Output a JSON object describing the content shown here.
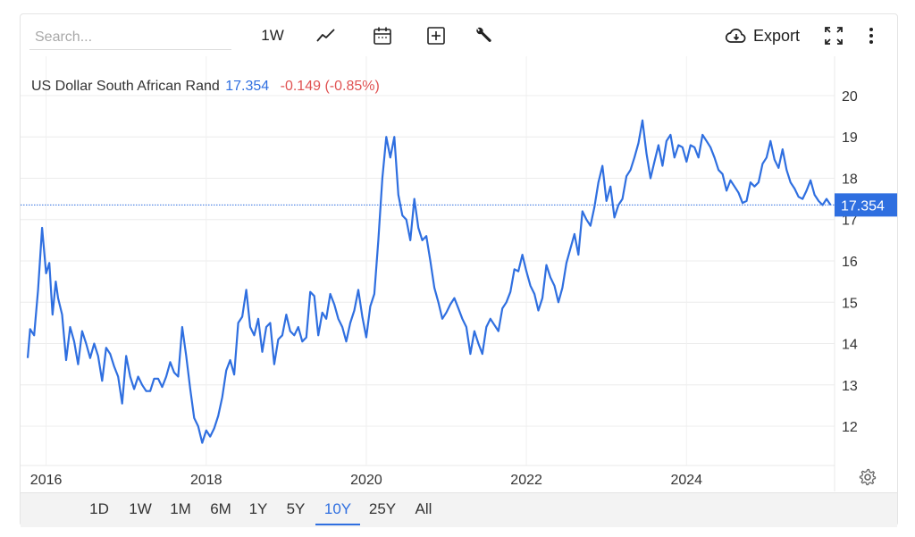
{
  "toolbar": {
    "search_placeholder": "Search...",
    "interval_label": "1W",
    "export_label": "Export",
    "icons": [
      "line-chart-icon",
      "calendar-icon",
      "add-indicator-icon",
      "wrench-icon",
      "cloud-download-icon",
      "fullscreen-icon",
      "more-vertical-icon"
    ]
  },
  "legend": {
    "name": "US Dollar South African Rand",
    "price": "17.354",
    "change": "-0.149 (-0.85%)"
  },
  "price_tag": "17.354",
  "range_buttons": [
    "1D",
    "1W",
    "1M",
    "6M",
    "1Y",
    "5Y",
    "10Y",
    "25Y",
    "All"
  ],
  "active_range": "10Y",
  "colors": {
    "line": "#2f6fe0",
    "negative": "#e05252",
    "tag_bg": "#2f6fe0"
  },
  "chart_data": {
    "type": "line",
    "title": "US Dollar South African Rand",
    "xlabel": "",
    "ylabel": "",
    "x_ticks": [
      "2016",
      "2018",
      "2020",
      "2022",
      "2024"
    ],
    "y_ticks": [
      12,
      13,
      14,
      15,
      16,
      17,
      18,
      19,
      20
    ],
    "xlim": [
      2015.77,
      2025.85
    ],
    "ylim": [
      11.05,
      20.95
    ],
    "current_value": 17.354,
    "series": [
      {
        "name": "",
        "x": [
          2015.77,
          2015.8,
          2015.85,
          2015.9,
          2015.95,
          2016.0,
          2016.04,
          2016.08,
          2016.12,
          2016.15,
          2016.2,
          2016.25,
          2016.3,
          2016.35,
          2016.4,
          2016.45,
          2016.5,
          2016.55,
          2016.6,
          2016.65,
          2016.7,
          2016.75,
          2016.8,
          2016.85,
          2016.9,
          2016.95,
          2017.0,
          2017.05,
          2017.1,
          2017.15,
          2017.2,
          2017.25,
          2017.3,
          2017.35,
          2017.4,
          2017.45,
          2017.5,
          2017.55,
          2017.6,
          2017.65,
          2017.7,
          2017.75,
          2017.8,
          2017.85,
          2017.9,
          2017.95,
          2018.0,
          2018.05,
          2018.1,
          2018.15,
          2018.2,
          2018.25,
          2018.3,
          2018.35,
          2018.4,
          2018.45,
          2018.5,
          2018.55,
          2018.6,
          2018.65,
          2018.7,
          2018.75,
          2018.8,
          2018.85,
          2018.9,
          2018.95,
          2019.0,
          2019.05,
          2019.1,
          2019.15,
          2019.2,
          2019.25,
          2019.3,
          2019.35,
          2019.4,
          2019.45,
          2019.5,
          2019.55,
          2019.6,
          2019.65,
          2019.7,
          2019.75,
          2019.8,
          2019.85,
          2019.9,
          2019.95,
          2020.0,
          2020.05,
          2020.1,
          2020.15,
          2020.2,
          2020.25,
          2020.3,
          2020.35,
          2020.4,
          2020.45,
          2020.5,
          2020.55,
          2020.6,
          2020.65,
          2020.7,
          2020.75,
          2020.8,
          2020.85,
          2020.9,
          2020.95,
          2021.0,
          2021.05,
          2021.1,
          2021.15,
          2021.2,
          2021.25,
          2021.3,
          2021.35,
          2021.4,
          2021.45,
          2021.5,
          2021.55,
          2021.6,
          2021.65,
          2021.7,
          2021.75,
          2021.8,
          2021.85,
          2021.9,
          2021.95,
          2022.0,
          2022.05,
          2022.1,
          2022.15,
          2022.2,
          2022.25,
          2022.3,
          2022.35,
          2022.4,
          2022.45,
          2022.5,
          2022.55,
          2022.6,
          2022.65,
          2022.7,
          2022.75,
          2022.8,
          2022.85,
          2022.9,
          2022.95,
          2023.0,
          2023.05,
          2023.1,
          2023.15,
          2023.2,
          2023.25,
          2023.3,
          2023.35,
          2023.4,
          2023.45,
          2023.5,
          2023.55,
          2023.6,
          2023.65,
          2023.7,
          2023.75,
          2023.8,
          2023.85,
          2023.9,
          2023.95,
          2024.0,
          2024.05,
          2024.1,
          2024.15,
          2024.2,
          2024.25,
          2024.3,
          2024.35,
          2024.4,
          2024.45,
          2024.5,
          2024.55,
          2024.6,
          2024.65,
          2024.7,
          2024.75,
          2024.8,
          2024.85,
          2024.9,
          2024.95,
          2025.0,
          2025.05,
          2025.1,
          2025.15,
          2025.2,
          2025.25,
          2025.3,
          2025.35,
          2025.4,
          2025.45,
          2025.5,
          2025.55,
          2025.6,
          2025.65,
          2025.7,
          2025.75,
          2025.8
        ],
        "values": [
          13.65,
          14.35,
          14.2,
          15.3,
          16.8,
          15.7,
          15.95,
          14.7,
          15.5,
          15.1,
          14.7,
          13.6,
          14.4,
          14.05,
          13.5,
          14.3,
          14.0,
          13.65,
          14.0,
          13.7,
          13.1,
          13.9,
          13.75,
          13.45,
          13.2,
          12.55,
          13.7,
          13.2,
          12.9,
          13.2,
          13.0,
          12.85,
          12.85,
          13.15,
          13.15,
          12.95,
          13.2,
          13.55,
          13.3,
          13.2,
          14.4,
          13.7,
          12.9,
          12.2,
          12.0,
          11.6,
          11.9,
          11.75,
          11.95,
          12.25,
          12.7,
          13.35,
          13.6,
          13.25,
          14.5,
          14.65,
          15.3,
          14.4,
          14.2,
          14.6,
          13.8,
          14.4,
          14.5,
          13.5,
          14.1,
          14.2,
          14.7,
          14.3,
          14.2,
          14.4,
          14.05,
          14.15,
          15.25,
          15.15,
          14.2,
          14.75,
          14.6,
          15.2,
          14.95,
          14.6,
          14.4,
          14.05,
          14.5,
          14.8,
          15.3,
          14.65,
          14.15,
          14.9,
          15.2,
          16.5,
          18.0,
          19.0,
          18.5,
          19.0,
          17.6,
          17.1,
          17.0,
          16.5,
          17.5,
          16.8,
          16.5,
          16.6,
          16.0,
          15.35,
          15.0,
          14.6,
          14.75,
          14.95,
          15.1,
          14.85,
          14.6,
          14.4,
          13.75,
          14.3,
          14.0,
          13.75,
          14.4,
          14.6,
          14.45,
          14.3,
          14.85,
          15.0,
          15.25,
          15.8,
          15.75,
          16.15,
          15.75,
          15.4,
          15.2,
          14.8,
          15.1,
          15.9,
          15.6,
          15.4,
          15.0,
          15.35,
          15.95,
          16.3,
          16.65,
          16.15,
          17.2,
          17.0,
          16.85,
          17.3,
          17.9,
          18.3,
          17.45,
          17.8,
          17.05,
          17.35,
          17.5,
          18.05,
          18.2,
          18.5,
          18.85,
          19.4,
          18.6,
          18.0,
          18.4,
          18.8,
          18.3,
          18.9,
          19.05,
          18.5,
          18.8,
          18.75,
          18.4,
          18.8,
          18.75,
          18.5,
          19.05,
          18.9,
          18.75,
          18.5,
          18.2,
          18.1,
          17.7,
          17.95,
          17.8,
          17.65,
          17.4,
          17.45,
          17.9,
          17.8,
          17.9,
          18.35,
          18.5,
          18.9,
          18.45,
          18.25,
          18.7,
          18.2,
          17.9,
          17.75,
          17.55,
          17.5,
          17.7,
          17.95,
          17.6,
          17.45,
          17.35,
          17.5,
          17.354
        ]
      }
    ]
  }
}
